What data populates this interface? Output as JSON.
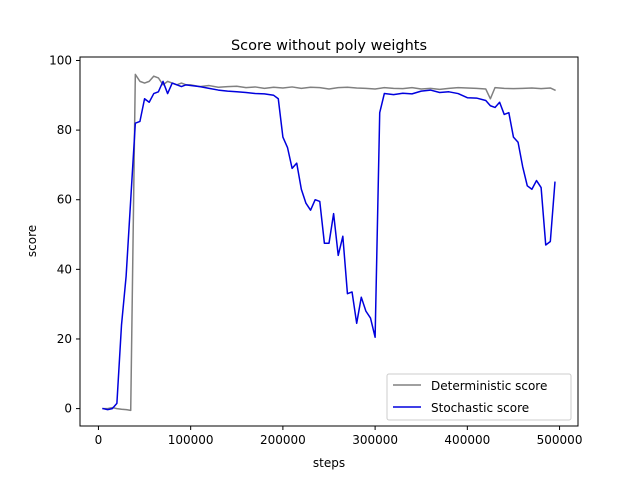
{
  "chart_data": {
    "type": "line",
    "title": "Score without poly weights",
    "xlabel": "steps",
    "ylabel": "score",
    "xlim": [
      -20000,
      520000
    ],
    "ylim": [
      -5,
      101
    ],
    "x_ticks": [
      0,
      100000,
      200000,
      300000,
      400000,
      500000
    ],
    "x_tick_labels": [
      "0",
      "100000",
      "200000",
      "300000",
      "400000",
      "500000"
    ],
    "y_ticks": [
      0,
      20,
      40,
      60,
      80,
      100
    ],
    "y_tick_labels": [
      "0",
      "20",
      "40",
      "60",
      "80",
      "100"
    ],
    "grid": false,
    "legend_position": "lower-right",
    "series": [
      {
        "name": "Deterministic score",
        "color": "#808080",
        "x": [
          5000,
          10000,
          15000,
          20000,
          25000,
          30000,
          35000,
          40000,
          45000,
          50000,
          55000,
          60000,
          65000,
          70000,
          75000,
          80000,
          85000,
          90000,
          95000,
          100000,
          110000,
          120000,
          130000,
          140000,
          150000,
          160000,
          170000,
          180000,
          190000,
          200000,
          210000,
          220000,
          230000,
          240000,
          250000,
          260000,
          270000,
          280000,
          290000,
          300000,
          310000,
          320000,
          330000,
          340000,
          350000,
          360000,
          370000,
          380000,
          390000,
          400000,
          410000,
          420000,
          425000,
          430000,
          440000,
          450000,
          460000,
          470000,
          480000,
          490000,
          495000
        ],
        "y": [
          0,
          0,
          0.3,
          0,
          -0.2,
          -0.3,
          -0.5,
          96,
          94,
          93.5,
          94,
          95.5,
          95,
          93,
          94,
          93.5,
          93,
          93.5,
          93,
          93,
          92.5,
          92.8,
          92.3,
          92.5,
          92.6,
          92.2,
          92.4,
          92.0,
          92.3,
          92.1,
          92.4,
          92.0,
          92.3,
          92.2,
          91.8,
          92.2,
          92.3,
          92.1,
          92.0,
          91.8,
          92.2,
          92.0,
          91.9,
          92.2,
          91.8,
          92.0,
          91.7,
          92.0,
          92.2,
          92.1,
          92.0,
          91.8,
          89.0,
          92.2,
          92.0,
          91.9,
          92.0,
          92.1,
          91.9,
          92.1,
          91.5
        ]
      },
      {
        "name": "Stochastic score",
        "color": "#0000dd",
        "x": [
          5000,
          10000,
          15000,
          20000,
          25000,
          30000,
          35000,
          40000,
          45000,
          50000,
          55000,
          60000,
          65000,
          70000,
          75000,
          80000,
          85000,
          90000,
          95000,
          100000,
          110000,
          120000,
          130000,
          140000,
          150000,
          160000,
          170000,
          180000,
          190000,
          195000,
          200000,
          205000,
          210000,
          215000,
          220000,
          225000,
          230000,
          235000,
          240000,
          245000,
          250000,
          255000,
          260000,
          265000,
          270000,
          275000,
          280000,
          285000,
          290000,
          295000,
          300000,
          305000,
          310000,
          320000,
          330000,
          340000,
          350000,
          360000,
          370000,
          380000,
          390000,
          400000,
          410000,
          420000,
          425000,
          430000,
          435000,
          440000,
          445000,
          450000,
          455000,
          460000,
          465000,
          470000,
          475000,
          480000,
          485000,
          490000,
          495000
        ],
        "y": [
          0,
          -0.3,
          0,
          1.5,
          24,
          38,
          60,
          82,
          82.5,
          89,
          88,
          90.5,
          91,
          94,
          90.5,
          93.5,
          93,
          92.5,
          93,
          92.8,
          92.5,
          92.0,
          91.5,
          91.2,
          91.0,
          90.8,
          90.5,
          90.4,
          90.0,
          89.0,
          78,
          75,
          69,
          70.5,
          63,
          59,
          57,
          60,
          59.5,
          47.5,
          47.5,
          56,
          44,
          49.5,
          33,
          33.5,
          24.5,
          32,
          28,
          26,
          20.5,
          85,
          90.5,
          90.2,
          90.6,
          90.4,
          91.2,
          91.5,
          90.8,
          91.0,
          90.5,
          89.3,
          89.2,
          88.5,
          87.0,
          86.5,
          88.0,
          84.5,
          85.0,
          78.0,
          76.5,
          69.5,
          64.0,
          63.0,
          65.5,
          63.5,
          47.0,
          48.0,
          65.0
        ]
      }
    ]
  }
}
